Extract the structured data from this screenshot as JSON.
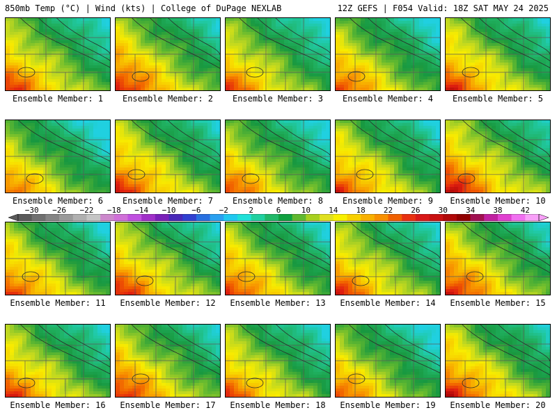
{
  "header": {
    "left": "850mb Temp (°C) | Wind (kts) | College of DuPage NEXLAB",
    "right": "12Z GEFS | F054 Valid: 18Z SAT MAY 24 2025"
  },
  "colorbar": {
    "labels": [
      "−30",
      "−26",
      "−22",
      "−18",
      "−14",
      "−10",
      "−6",
      "−2",
      "2",
      "6",
      "10",
      "14",
      "18",
      "22",
      "26",
      "30",
      "34",
      "38",
      "42"
    ],
    "label_values": [
      -30,
      -26,
      -22,
      -18,
      -14,
      -10,
      -6,
      -2,
      2,
      6,
      10,
      14,
      18,
      22,
      26,
      30,
      34,
      38,
      42
    ],
    "min": -32,
    "max": 44,
    "step": 2,
    "colors": [
      "#5a5a5a",
      "#707070",
      "#858585",
      "#9a9a9a",
      "#b0b0b0",
      "#c5c5c5",
      "#cc88cc",
      "#d070d8",
      "#c050e0",
      "#a030c8",
      "#7a20b8",
      "#4828b8",
      "#3040d0",
      "#2870e0",
      "#2aa0f0",
      "#20c8f0",
      "#20e0d8",
      "#20d0a0",
      "#20b868",
      "#10a040",
      "#60b830",
      "#a8d020",
      "#e0e020",
      "#f8f000",
      "#f8d000",
      "#f8b000",
      "#f89000",
      "#f06000",
      "#e83010",
      "#d81818",
      "#c81010",
      "#b00808",
      "#900000",
      "#a01050",
      "#c020a0",
      "#e040d0",
      "#f070f0",
      "#f8a0f8"
    ]
  },
  "ensemble_label_prefix": "Ensemble Member:",
  "members": [
    {
      "id": "1",
      "label": "Ensemble Member: 1",
      "warmth": 0.55
    },
    {
      "id": "2",
      "label": "Ensemble Member: 2",
      "warmth": 0.62
    },
    {
      "id": "3",
      "label": "Ensemble Member: 3",
      "warmth": 0.5
    },
    {
      "id": "4",
      "label": "Ensemble Member: 4",
      "warmth": 0.52
    },
    {
      "id": "5",
      "label": "Ensemble Member: 5",
      "warmth": 0.58
    },
    {
      "id": "6",
      "label": "Ensemble Member: 6",
      "warmth": 0.45
    },
    {
      "id": "7",
      "label": "Ensemble Member: 7",
      "warmth": 0.6
    },
    {
      "id": "8",
      "label": "Ensemble Member: 8",
      "warmth": 0.5
    },
    {
      "id": "9",
      "label": "Ensemble Member: 9",
      "warmth": 0.55
    },
    {
      "id": "10",
      "label": "Ensemble Member: 10",
      "warmth": 0.65
    },
    {
      "id": "11",
      "label": "Ensemble Member: 11",
      "warmth": 0.55
    },
    {
      "id": "12",
      "label": "Ensemble Member: 12",
      "warmth": 0.58
    },
    {
      "id": "13",
      "label": "Ensemble Member: 13",
      "warmth": 0.57
    },
    {
      "id": "14",
      "label": "Ensemble Member: 14",
      "warmth": 0.55
    },
    {
      "id": "15",
      "label": "Ensemble Member: 15",
      "warmth": 0.62
    },
    {
      "id": "16",
      "label": "Ensemble Member: 16",
      "warmth": 0.55
    },
    {
      "id": "17",
      "label": "Ensemble Member: 17",
      "warmth": 0.6
    },
    {
      "id": "18",
      "label": "Ensemble Member: 18",
      "warmth": 0.52
    },
    {
      "id": "19",
      "label": "Ensemble Member: 19",
      "warmth": 0.48
    },
    {
      "id": "20",
      "label": "Ensemble Member: 20",
      "warmth": 0.63
    }
  ]
}
